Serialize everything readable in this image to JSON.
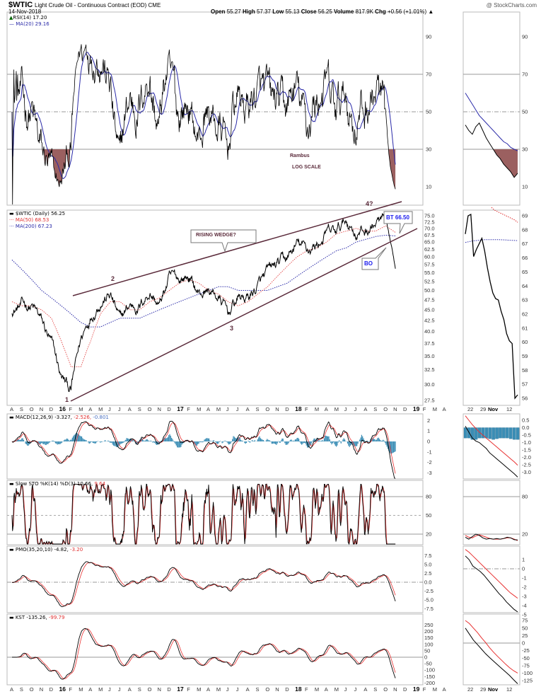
{
  "header": {
    "symbol": "$WTIC",
    "name": "Light Crude Oil - Continuous Contract (EOD) CME",
    "date": "14-Nov-2018",
    "credit": "@ StockCharts.com",
    "open_label": "Open",
    "open": "55.27",
    "high_label": "High",
    "high": "57.37",
    "low_label": "Low",
    "low": "55.13",
    "close_label": "Close",
    "close": "56.25",
    "volume_label": "Volume",
    "volume": "817.9K",
    "chg_label": "Chg",
    "chg": "+0.56 (+1.01%)"
  },
  "legends": {
    "rsi": "RSI(14) 17.20",
    "rsi_ma": "MA(20) 29.16",
    "price": "$WTIC (Daily) 56.25",
    "ma50": "MA(50) 68.53",
    "ma200": "MA(200) 67.23",
    "macd": "MACD(12,26,9) -3.327,",
    "macd_signal": "-2.526,",
    "macd_hist": "-0.801",
    "sto": "Slow STO %K(14) %D(3) 10.66,",
    "sto_d": "9.64",
    "pmo": "PMO(35,20,10) -4.82,",
    "pmo_signal": "-3.20",
    "kst": "KST -135.26,",
    "kst_signal": "-99.79"
  },
  "annotations": {
    "rambus": "Rambus",
    "log_scale": "LOG SCALE",
    "rising_wedge": "RISING WEDGE?",
    "bt": "BT 66.50",
    "bo": "BO",
    "p1": "1",
    "p2": "2",
    "p3": "3",
    "p4": "4?"
  },
  "colors": {
    "price": "#000000",
    "ma50": "#e03030",
    "ma200": "#2a2aa8",
    "rsi_fill": "#9b6060",
    "wedge": "#5a2a3a",
    "macd_hist": "#3a8db5",
    "signal": "#e83030"
  },
  "chart_data": {
    "type": "line",
    "title": "$WTIC Light Crude Oil - Continuous Contract (EOD) CME",
    "scale": "log",
    "x_labels": [
      "A",
      "S",
      "O",
      "N",
      "D",
      "16",
      "F",
      "M",
      "A",
      "M",
      "J",
      "J",
      "A",
      "S",
      "O",
      "N",
      "D",
      "17",
      "F",
      "M",
      "A",
      "M",
      "J",
      "J",
      "A",
      "S",
      "O",
      "N",
      "D",
      "18",
      "F",
      "M",
      "A",
      "M",
      "J",
      "J",
      "A",
      "S",
      "O",
      "N",
      "D",
      "19",
      "F",
      "M",
      "A"
    ],
    "year_labels": [
      "16",
      "17",
      "18",
      "19"
    ],
    "monthly_close": [
      45,
      46,
      46,
      42,
      37,
      31,
      29,
      38,
      44,
      48,
      49,
      42,
      46,
      46,
      50,
      46,
      53,
      53,
      54,
      49,
      50,
      48,
      44,
      48,
      48,
      51,
      54,
      57,
      59,
      64,
      62,
      64,
      68,
      68,
      73,
      69,
      69,
      72,
      73,
      56.25
    ],
    "ma50": [
      47,
      46,
      46,
      45,
      43,
      38,
      33,
      33,
      38,
      44,
      47,
      47,
      45,
      45,
      47,
      48,
      50,
      52,
      53,
      52,
      50,
      49,
      47,
      46,
      47,
      49,
      51,
      54,
      57,
      60,
      62,
      63,
      65,
      68,
      69,
      70,
      69,
      69,
      71,
      68.53
    ],
    "ma200": [
      59,
      56,
      53,
      50,
      48,
      46,
      44,
      42,
      41,
      41,
      42,
      43,
      43,
      43,
      44,
      45,
      46,
      47,
      48,
      49,
      50,
      51,
      51,
      50,
      50,
      50,
      50,
      51,
      52,
      54,
      56,
      58,
      60,
      62,
      63,
      65,
      66,
      67,
      67.5,
      67.23
    ],
    "price_ticks": [
      "75.0",
      "72.5",
      "70.0",
      "67.5",
      "65.0",
      "62.5",
      "60.0",
      "57.5",
      "55.0",
      "52.5",
      "50.0",
      "47.5",
      "45.0",
      "42.5",
      "40.0",
      "37.5",
      "35.0",
      "32.5",
      "30.0",
      "27.5"
    ],
    "rsi_ticks": [
      "90",
      "70",
      "50",
      "30",
      "10"
    ],
    "macd_ticks": [
      "2",
      "1",
      "0",
      "-1",
      "-2",
      "-3"
    ],
    "sto_ticks": [
      "80",
      "50",
      "20"
    ],
    "pmo_ticks": [
      "7.5",
      "5.0",
      "2.5",
      "0.0",
      "-2.5",
      "-5.0",
      "-7.5"
    ],
    "kst_ticks": [
      "250",
      "200",
      "150",
      "100",
      "50",
      "0",
      "-50",
      "-100",
      "-150",
      "-200"
    ],
    "zoom_panel": {
      "x_labels": [
        "22",
        "29",
        "Nov",
        "12"
      ],
      "price_ticks": [
        "69",
        "68",
        "67",
        "66",
        "65",
        "64",
        "63",
        "62",
        "61",
        "60",
        "59",
        "58",
        "57",
        "56"
      ],
      "price": [
        67.7,
        69.0,
        69.1,
        66.1,
        66.6,
        67.0,
        67.4,
        66.5,
        65.3,
        64.3,
        63.5,
        63.1,
        63.0,
        62.2,
        61.6,
        60.6,
        60.1,
        59.9,
        56.0,
        56.25
      ],
      "ma50": [
        69.6,
        69.4,
        69.3,
        69.2,
        69.1,
        69.0,
        68.9,
        68.8,
        68.7,
        68.53
      ],
      "ma200": [
        67.1,
        67.2,
        67.25,
        67.3,
        67.3,
        67.3,
        67.28,
        67.25,
        67.23
      ],
      "rsi": [
        43,
        40,
        38,
        42,
        44,
        40,
        36,
        33,
        30,
        27,
        25,
        22,
        20,
        18,
        15,
        17.2
      ],
      "rsi_ma": [
        60,
        57,
        54,
        51,
        48,
        46,
        44,
        42,
        40,
        38,
        36,
        34,
        33,
        31,
        30,
        29.16
      ],
      "macd_ticks": [
        "0.5",
        "0.0",
        "-0.5",
        "-1.0",
        "-1.5",
        "-2.0",
        "-2.5",
        "-3.0"
      ],
      "macd": [
        0.1,
        -0.3,
        -0.7,
        -0.9,
        -1.0,
        -1.2,
        -1.4,
        -1.7,
        -1.9,
        -2.1,
        -2.3,
        -2.5,
        -2.7,
        -2.9,
        -3.1,
        -3.33
      ],
      "macd_signal": [
        0.8,
        0.5,
        0.2,
        -0.05,
        -0.3,
        -0.5,
        -0.7,
        -0.9,
        -1.1,
        -1.3,
        -1.5,
        -1.7,
        -1.9,
        -2.1,
        -2.3,
        -2.53
      ],
      "macd_hist": [
        -0.7,
        -0.7,
        -0.8,
        -0.8,
        -0.7,
        -0.7,
        -0.7,
        -0.75,
        -0.8,
        -0.75,
        -0.7,
        -0.7,
        -0.7,
        -0.75,
        -0.8,
        -0.8
      ],
      "sto_ticks": [
        "80",
        "20"
      ],
      "sto_k": [
        15,
        12,
        16,
        20,
        18,
        14,
        12,
        13,
        12,
        13,
        12,
        13,
        15,
        14,
        11,
        10.66
      ],
      "sto_d": [
        18,
        15,
        14,
        17,
        19,
        17,
        15,
        13,
        12,
        12,
        12,
        13,
        14,
        14,
        12,
        9.64
      ],
      "pmo_ticks": [
        "1",
        "0",
        "-1",
        "-2",
        "-3",
        "-4",
        "-5"
      ],
      "pmo": [
        1.4,
        1.0,
        0.3,
        0,
        -0.3,
        -0.7,
        -1.2,
        -1.7,
        -2.2,
        -2.7,
        -3.1,
        -3.6,
        -4.0,
        -4.4,
        -4.82
      ],
      "pmo_signal": [
        2.1,
        1.8,
        1.4,
        1.0,
        0.6,
        0.2,
        -0.2,
        -0.6,
        -1.0,
        -1.4,
        -1.8,
        -2.2,
        -2.6,
        -2.9,
        -3.2
      ],
      "kst_ticks": [
        "75",
        "50",
        "25",
        "0",
        "-25",
        "-50",
        "-75",
        "-100",
        "-125"
      ],
      "kst": [
        50,
        30,
        10,
        -5,
        -20,
        -35,
        -48,
        -60,
        -72,
        -84,
        -96,
        -108,
        -122,
        -135.26
      ],
      "kst_signal": [
        75,
        65,
        50,
        35,
        18,
        2,
        -15,
        -30,
        -44,
        -57,
        -70,
        -82,
        -92,
        -99.79
      ]
    }
  }
}
